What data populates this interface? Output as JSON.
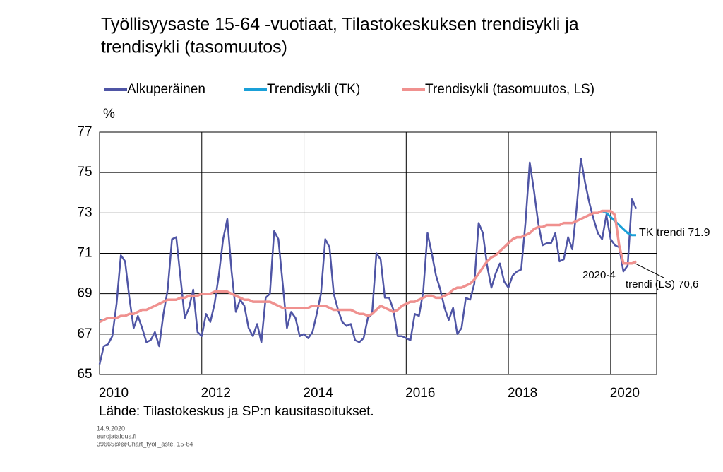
{
  "chart_data": {
    "type": "line",
    "title": [
      "Työllisyysaste 15-64 -vuotiaat, Tilastokeskuksen trendisykli ja",
      "trendisykli (tasomuutos)"
    ],
    "y_label": "%",
    "source": "Lähde: Tilastokeskus ja SP:n kausitasoitukset.",
    "footer": [
      "14.9.2020",
      "eurojatalous.fi",
      "39665@@Chart_tyoll_aste, 15-64"
    ],
    "annotations": [
      "TK trendi 71.9",
      "2020-4",
      "trendi (LS) 70,6"
    ],
    "xlim": [
      2010,
      2020.9
    ],
    "xticks": [
      2010,
      2012,
      2014,
      2016,
      2018,
      2020
    ],
    "ylim": [
      65,
      77
    ],
    "yticks": [
      65,
      67,
      69,
      71,
      73,
      75,
      77
    ],
    "grid": true,
    "x": [
      2010,
      2010.083,
      2010.167,
      2010.25,
      2010.333,
      2010.417,
      2010.5,
      2010.583,
      2010.667,
      2010.75,
      2010.833,
      2010.917,
      2011,
      2011.083,
      2011.167,
      2011.25,
      2011.333,
      2011.417,
      2011.5,
      2011.583,
      2011.667,
      2011.75,
      2011.833,
      2011.917,
      2012,
      2012.083,
      2012.167,
      2012.25,
      2012.333,
      2012.417,
      2012.5,
      2012.583,
      2012.667,
      2012.75,
      2012.833,
      2012.917,
      2013,
      2013.083,
      2013.167,
      2013.25,
      2013.333,
      2013.417,
      2013.5,
      2013.583,
      2013.667,
      2013.75,
      2013.833,
      2013.917,
      2014,
      2014.083,
      2014.167,
      2014.25,
      2014.333,
      2014.417,
      2014.5,
      2014.583,
      2014.667,
      2014.75,
      2014.833,
      2014.917,
      2015,
      2015.083,
      2015.167,
      2015.25,
      2015.333,
      2015.417,
      2015.5,
      2015.583,
      2015.667,
      2015.75,
      2015.833,
      2015.917,
      2016,
      2016.083,
      2016.167,
      2016.25,
      2016.333,
      2016.417,
      2016.5,
      2016.583,
      2016.667,
      2016.75,
      2016.833,
      2016.917,
      2017,
      2017.083,
      2017.167,
      2017.25,
      2017.333,
      2017.417,
      2017.5,
      2017.583,
      2017.667,
      2017.75,
      2017.833,
      2017.917,
      2018,
      2018.083,
      2018.167,
      2018.25,
      2018.333,
      2018.417,
      2018.5,
      2018.583,
      2018.667,
      2018.75,
      2018.833,
      2018.917,
      2019,
      2019.083,
      2019.167,
      2019.25,
      2019.333,
      2019.417,
      2019.5,
      2019.583,
      2019.667,
      2019.75,
      2019.833,
      2019.917,
      2020,
      2020.083,
      2020.167,
      2020.25,
      2020.333,
      2020.417,
      2020.5
    ],
    "series": [
      {
        "name": "Alkuperäinen",
        "color": "#4f55a5",
        "width": 2.5,
        "values": [
          65.5,
          66.4,
          66.5,
          66.9,
          68.5,
          70.9,
          70.6,
          68.8,
          67.3,
          67.9,
          67.3,
          66.6,
          66.7,
          67.1,
          66.4,
          68.0,
          69.2,
          71.7,
          71.8,
          69.8,
          67.8,
          68.3,
          69.2,
          67.1,
          66.9,
          68.0,
          67.6,
          68.5,
          69.9,
          71.7,
          72.7,
          70.1,
          68.1,
          68.7,
          68.4,
          67.3,
          66.9,
          67.5,
          66.6,
          68.8,
          69.0,
          72.1,
          71.7,
          69.5,
          67.3,
          68.1,
          67.8,
          66.9,
          67.0,
          66.8,
          67.1,
          68.0,
          69.0,
          71.7,
          71.3,
          69.0,
          68.2,
          67.6,
          67.4,
          67.5,
          66.7,
          66.6,
          66.8,
          67.8,
          68.0,
          71.0,
          70.7,
          68.8,
          68.8,
          68.2,
          66.9,
          66.9,
          66.8,
          66.7,
          68.0,
          67.9,
          69.1,
          72.0,
          71.0,
          69.9,
          69.2,
          68.3,
          67.7,
          68.3,
          67.0,
          67.3,
          68.8,
          68.7,
          69.5,
          72.5,
          72.0,
          70.4,
          69.3,
          70.0,
          70.5,
          69.6,
          69.3,
          69.9,
          70.1,
          70.2,
          72.5,
          75.5,
          74.1,
          72.5,
          71.4,
          71.5,
          71.5,
          72.0,
          70.6,
          70.7,
          71.8,
          71.2,
          73.2,
          75.7,
          74.5,
          73.5,
          72.7,
          72.0,
          71.7,
          72.9,
          71.7,
          71.4,
          71.3,
          70.1,
          70.4,
          73.7,
          73.2
        ]
      },
      {
        "name": "Trendisykli (TK)",
        "color": "#1aa0d8",
        "width": 3,
        "values": [
          67.7,
          67.7,
          67.8,
          67.8,
          67.8,
          67.9,
          67.9,
          68.0,
          68.0,
          68.1,
          68.2,
          68.2,
          68.3,
          68.4,
          68.5,
          68.6,
          68.7,
          68.7,
          68.7,
          68.8,
          68.8,
          68.9,
          68.9,
          68.9,
          69.0,
          69.0,
          69.0,
          69.1,
          69.1,
          69.1,
          69.1,
          69.0,
          68.9,
          68.8,
          68.7,
          68.7,
          68.6,
          68.6,
          68.6,
          68.6,
          68.6,
          68.5,
          68.4,
          68.3,
          68.3,
          68.3,
          68.3,
          68.3,
          68.3,
          68.3,
          68.4,
          68.4,
          68.4,
          68.4,
          68.3,
          68.2,
          68.2,
          68.2,
          68.2,
          68.2,
          68.1,
          68.0,
          68.0,
          67.9,
          68.0,
          68.2,
          68.4,
          68.3,
          68.2,
          68.1,
          68.2,
          68.4,
          68.5,
          68.6,
          68.6,
          68.7,
          68.8,
          68.9,
          68.9,
          68.8,
          68.8,
          68.9,
          69.0,
          69.2,
          69.3,
          69.3,
          69.4,
          69.5,
          69.7,
          70.0,
          70.3,
          70.6,
          70.8,
          70.9,
          71.1,
          71.3,
          71.5,
          71.7,
          71.8,
          71.8,
          71.9,
          72.0,
          72.2,
          72.3,
          72.3,
          72.4,
          72.4,
          72.4,
          72.4,
          72.5,
          72.5,
          72.5,
          72.6,
          72.7,
          72.8,
          72.9,
          73.0,
          73.0,
          73.1,
          73.0,
          72.8,
          72.6,
          72.4,
          72.2,
          72.0,
          71.9,
          71.9
        ]
      },
      {
        "name": "Trendisykli (tasomuutos, LS)",
        "color": "#f0918f",
        "width": 3.5,
        "values": [
          67.6,
          67.7,
          67.8,
          67.8,
          67.8,
          67.9,
          67.9,
          68.0,
          68.0,
          68.1,
          68.2,
          68.2,
          68.3,
          68.4,
          68.5,
          68.6,
          68.7,
          68.7,
          68.7,
          68.8,
          68.8,
          68.9,
          68.9,
          68.9,
          69.0,
          69.0,
          69.0,
          69.1,
          69.1,
          69.1,
          69.1,
          69.0,
          68.9,
          68.8,
          68.7,
          68.7,
          68.6,
          68.6,
          68.6,
          68.6,
          68.6,
          68.5,
          68.4,
          68.3,
          68.3,
          68.3,
          68.3,
          68.3,
          68.3,
          68.3,
          68.4,
          68.4,
          68.4,
          68.4,
          68.3,
          68.2,
          68.2,
          68.2,
          68.2,
          68.2,
          68.1,
          68.0,
          68.0,
          67.9,
          68.0,
          68.2,
          68.4,
          68.3,
          68.2,
          68.1,
          68.2,
          68.4,
          68.5,
          68.6,
          68.6,
          68.7,
          68.8,
          68.9,
          68.9,
          68.8,
          68.8,
          68.9,
          69.0,
          69.2,
          69.3,
          69.3,
          69.4,
          69.5,
          69.7,
          70.0,
          70.3,
          70.6,
          70.8,
          70.9,
          71.1,
          71.3,
          71.5,
          71.7,
          71.8,
          71.8,
          71.9,
          72.0,
          72.2,
          72.3,
          72.3,
          72.4,
          72.4,
          72.4,
          72.4,
          72.5,
          72.5,
          72.5,
          72.6,
          72.7,
          72.8,
          72.9,
          73.0,
          73.0,
          73.1,
          73.1,
          73.1,
          72.9,
          71.4,
          70.5,
          70.5,
          70.5,
          70.6
        ]
      }
    ]
  }
}
